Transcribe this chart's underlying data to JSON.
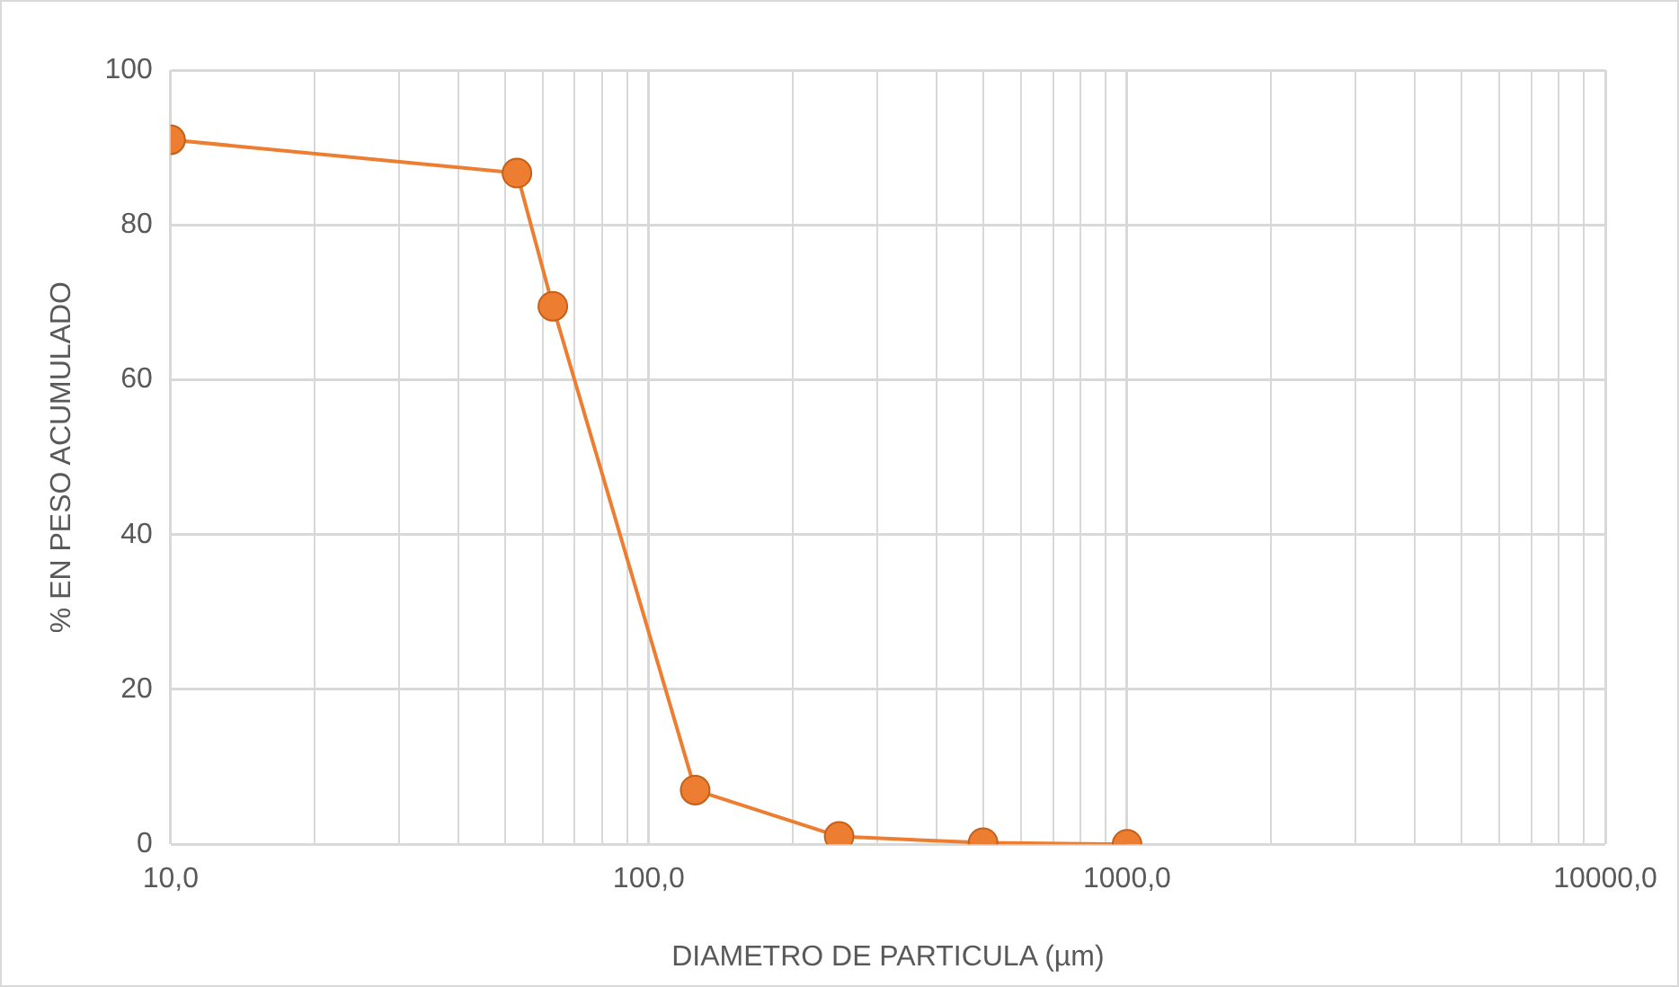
{
  "chart_data": {
    "type": "line",
    "xlabel": "DIAMETRO DE PARTICULA (µm)",
    "ylabel": "% EN PESO ACUMULADO",
    "log": "x",
    "grid": true,
    "legend": false,
    "line_style": "solid",
    "xlim": [
      10,
      10000
    ],
    "ylim": [
      0,
      100
    ],
    "xticks": [
      {
        "value": 10,
        "label": "10,0"
      },
      {
        "value": 20,
        "label": null
      },
      {
        "value": 30,
        "label": null
      },
      {
        "value": 40,
        "label": null
      },
      {
        "value": 50,
        "label": null
      },
      {
        "value": 60,
        "label": null
      },
      {
        "value": 70,
        "label": null
      },
      {
        "value": 80,
        "label": null
      },
      {
        "value": 90,
        "label": null
      },
      {
        "value": 100,
        "label": "100,0"
      },
      {
        "value": 200,
        "label": null
      },
      {
        "value": 300,
        "label": null
      },
      {
        "value": 400,
        "label": null
      },
      {
        "value": 500,
        "label": null
      },
      {
        "value": 600,
        "label": null
      },
      {
        "value": 700,
        "label": null
      },
      {
        "value": 800,
        "label": null
      },
      {
        "value": 900,
        "label": null
      },
      {
        "value": 1000,
        "label": "1000,0"
      },
      {
        "value": 2000,
        "label": null
      },
      {
        "value": 3000,
        "label": null
      },
      {
        "value": 4000,
        "label": null
      },
      {
        "value": 5000,
        "label": null
      },
      {
        "value": 6000,
        "label": null
      },
      {
        "value": 7000,
        "label": null
      },
      {
        "value": 8000,
        "label": null
      },
      {
        "value": 9000,
        "label": null
      },
      {
        "value": 10000,
        "label": "10000,0"
      }
    ],
    "yticks": [
      0,
      20,
      40,
      60,
      80,
      100
    ],
    "series": [
      {
        "color": "#ed7d31",
        "marker": "circle",
        "x": [
          10,
          53,
          63,
          125,
          250,
          500,
          1000
        ],
        "values": [
          91,
          86.7,
          69.5,
          7,
          1,
          0.2,
          0
        ]
      }
    ]
  }
}
